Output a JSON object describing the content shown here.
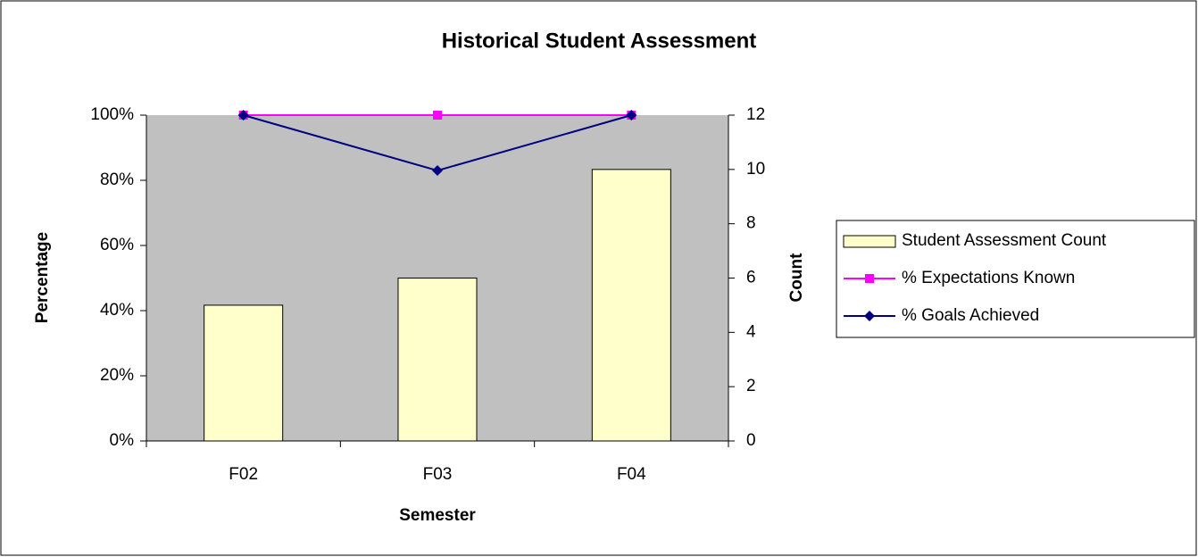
{
  "chart_data": {
    "type": "bar",
    "title": "Historical Student Assessment",
    "xlabel": "Semester",
    "ylabel": "Percentage",
    "y2label": "Count",
    "categories": [
      "F02",
      "F03",
      "F04"
    ],
    "series": [
      {
        "name": "Student Assessment Count",
        "type": "bar",
        "axis": "y2",
        "color": "#ffffcc",
        "values": [
          5,
          6,
          10
        ]
      },
      {
        "name": "% Expectations Known",
        "type": "line",
        "marker": "square",
        "color": "#ff00ff",
        "values": [
          100,
          100,
          100
        ]
      },
      {
        "name": "% Goals Achieved",
        "type": "line",
        "marker": "diamond",
        "color": "#000080",
        "values": [
          100,
          83,
          100
        ]
      }
    ],
    "ylim": [
      0,
      100
    ],
    "yticks": [
      {
        "value": 0,
        "label": "0%"
      },
      {
        "value": 20,
        "label": "20%"
      },
      {
        "value": 40,
        "label": "40%"
      },
      {
        "value": 60,
        "label": "60%"
      },
      {
        "value": 80,
        "label": "80%"
      },
      {
        "value": 100,
        "label": "100%"
      }
    ],
    "y2lim": [
      0,
      12
    ],
    "y2ticks": [
      0,
      2,
      4,
      6,
      8,
      10,
      12
    ],
    "legend": "right"
  }
}
